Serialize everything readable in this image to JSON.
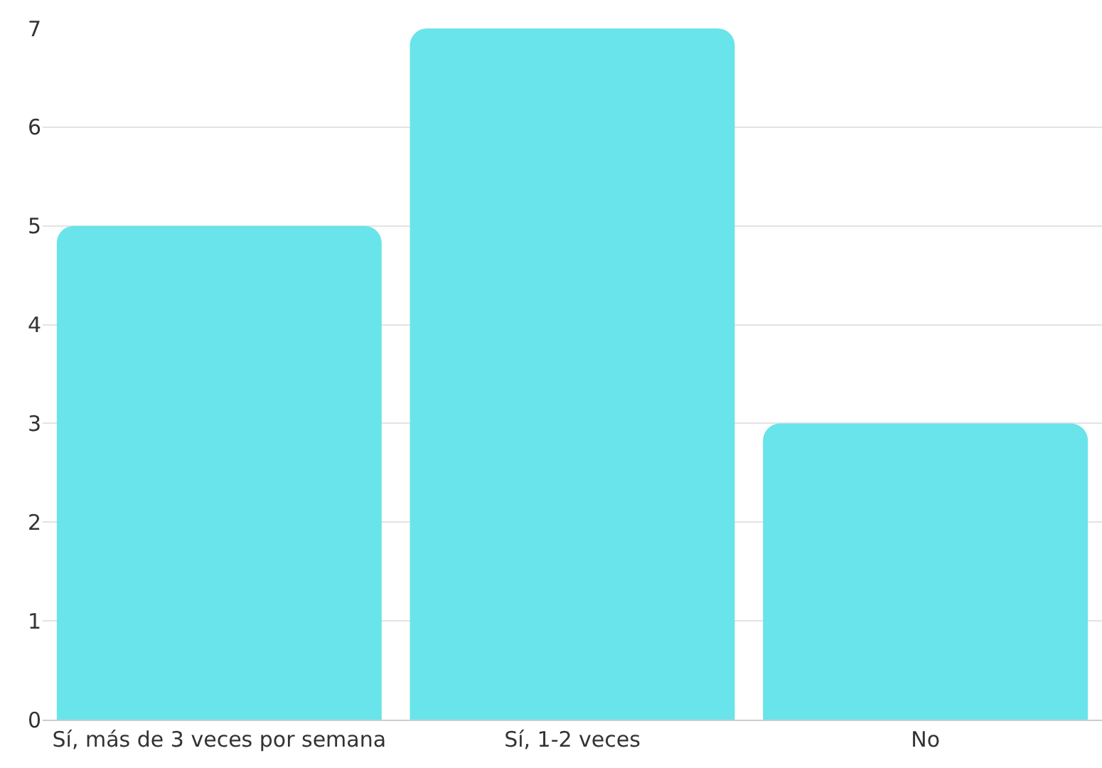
{
  "chart_data": {
    "type": "bar",
    "categories": [
      "Sí, más de 3 veces por semana",
      "Sí, 1-2 veces",
      "No"
    ],
    "values": [
      5,
      7,
      3
    ],
    "color": "#68e4ea",
    "ylim": [
      0,
      7
    ],
    "yticks": [
      0,
      1,
      2,
      3,
      4,
      5,
      6,
      7
    ],
    "grid": "y"
  }
}
